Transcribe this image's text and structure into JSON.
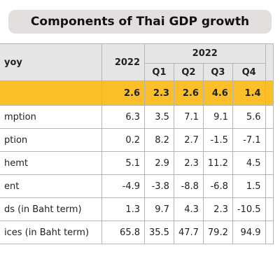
{
  "title": "Components of Thai GDP growth",
  "table": {
    "header": {
      "label": "yoy",
      "annual": "2022",
      "quarter_group": "2022",
      "quarters": [
        "Q1",
        "Q2",
        "Q3",
        "Q4"
      ]
    },
    "rows": [
      {
        "values": [
          2.6,
          2.3,
          2.6,
          4.6,
          1.4
        ]
      },
      {
        "label": "mption",
        "values": [
          6.3,
          3.5,
          7.1,
          9.1,
          5.6
        ]
      },
      {
        "label": "ption",
        "values": [
          0.2,
          8.2,
          2.7,
          -1.5,
          -7.1
        ]
      },
      {
        "label": "hemt",
        "values": [
          5.1,
          2.9,
          2.3,
          11.2,
          4.5
        ]
      },
      {
        "label": "ent",
        "values": [
          -4.9,
          -3.8,
          -8.8,
          -6.8,
          1.5
        ]
      },
      {
        "label": "ds (in Baht term)",
        "values": [
          1.3,
          9.7,
          4.3,
          2.3,
          -10.5
        ]
      },
      {
        "label": "ices (in Baht term)",
        "values": [
          65.8,
          35.5,
          47.7,
          79.2,
          94.9
        ]
      }
    ]
  }
}
